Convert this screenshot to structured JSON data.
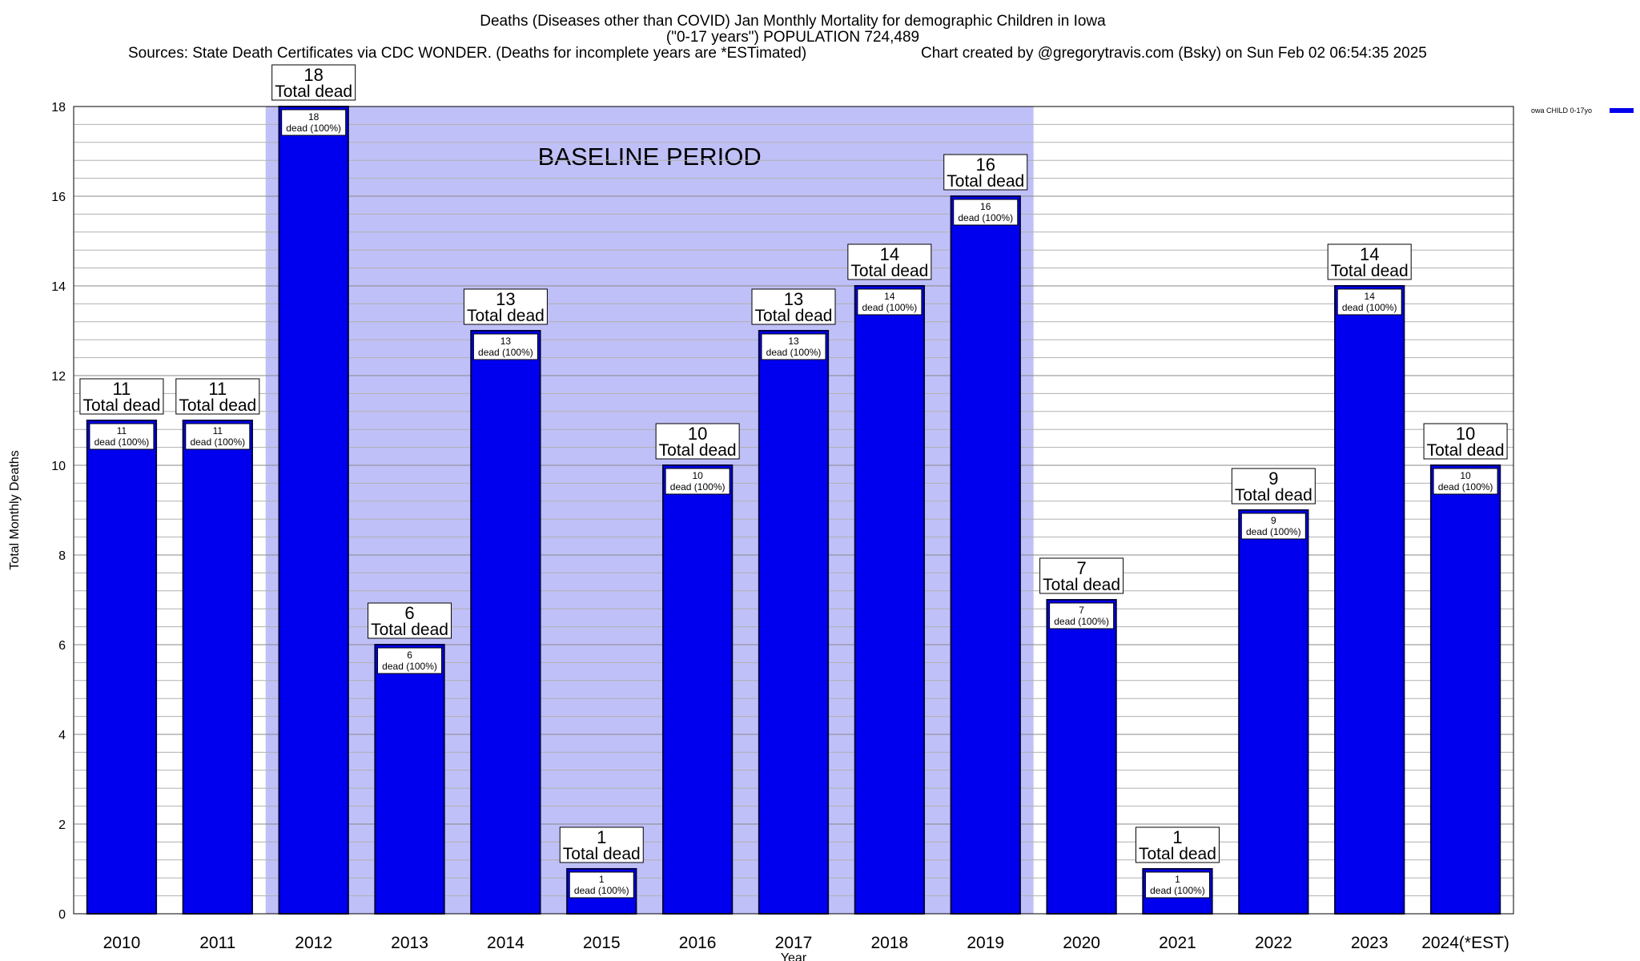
{
  "chart_data": {
    "type": "bar",
    "title_lines": [
      "Deaths (Diseases other than COVID) Jan Monthly Mortality for demographic Children in Iowa",
      "(\"0-17 years\") POPULATION 724,489"
    ],
    "sources": "Sources: State Death Certificates via CDC WONDER. (Deaths for incomplete years are *ESTimated)",
    "credit": "Chart created by @gregorytravis.com (Bsky) on Sun Feb 02 06:54:35 2025",
    "xlabel": "Year",
    "ylabel": "Total Monthly Deaths",
    "ylim": [
      0,
      18
    ],
    "y_ticks": [
      0,
      2,
      4,
      6,
      8,
      10,
      12,
      14,
      16,
      18
    ],
    "y_minor_step": 0.4,
    "grid": true,
    "categories": [
      "2010",
      "2011",
      "2012",
      "2013",
      "2014",
      "2015",
      "2016",
      "2017",
      "2018",
      "2019",
      "2020",
      "2021",
      "2022",
      "2023",
      "2024(*EST)"
    ],
    "series": [
      {
        "name": "owa CHILD 0-17yo",
        "values": [
          11,
          11,
          18,
          6,
          13,
          1,
          10,
          13,
          14,
          16,
          7,
          1,
          9,
          14,
          10
        ],
        "color": "#0000ee"
      }
    ],
    "top_label_text": "Total dead",
    "inner_label_text": "dead (100%)",
    "baseline_band": {
      "label": "BASELINE PERIOD",
      "start_category": "2012",
      "end_category": "2019",
      "color": "#c0c0f8"
    },
    "legend_placement": "top-right",
    "colors": {
      "bar_fill": "#0000ee",
      "bar_stroke": "#000044",
      "band_fill": "#c0c0f8",
      "grid": "#b0b0b0"
    }
  }
}
